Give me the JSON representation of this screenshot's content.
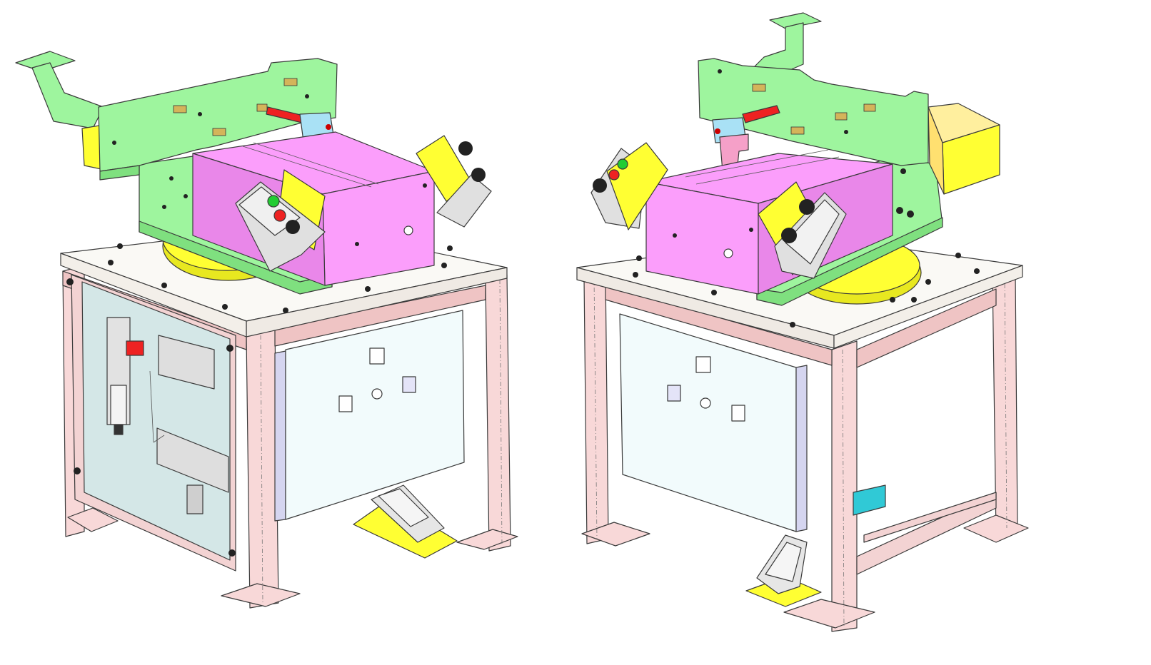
{
  "palette": {
    "frame": "#f8d8d8",
    "frame_dark": "#efc4c4",
    "tabletop": "#faf9f5",
    "green": "#9ef59e",
    "green_dark": "#7fe07f",
    "magenta": "#fb9efb",
    "magenta_dark": "#e987e9",
    "yellow": "#ffff33",
    "yellow_dark": "#e8e820",
    "panel": "#f2fbfc",
    "glass": "#c9eeee",
    "grey": "#d6d6d6",
    "red": "#ee2222",
    "knob": "#222222",
    "cyan": "#a9e1f5",
    "teal": "#30c9d6"
  },
  "views": [
    {
      "id": "left-view"
    },
    {
      "id": "right-view"
    }
  ]
}
